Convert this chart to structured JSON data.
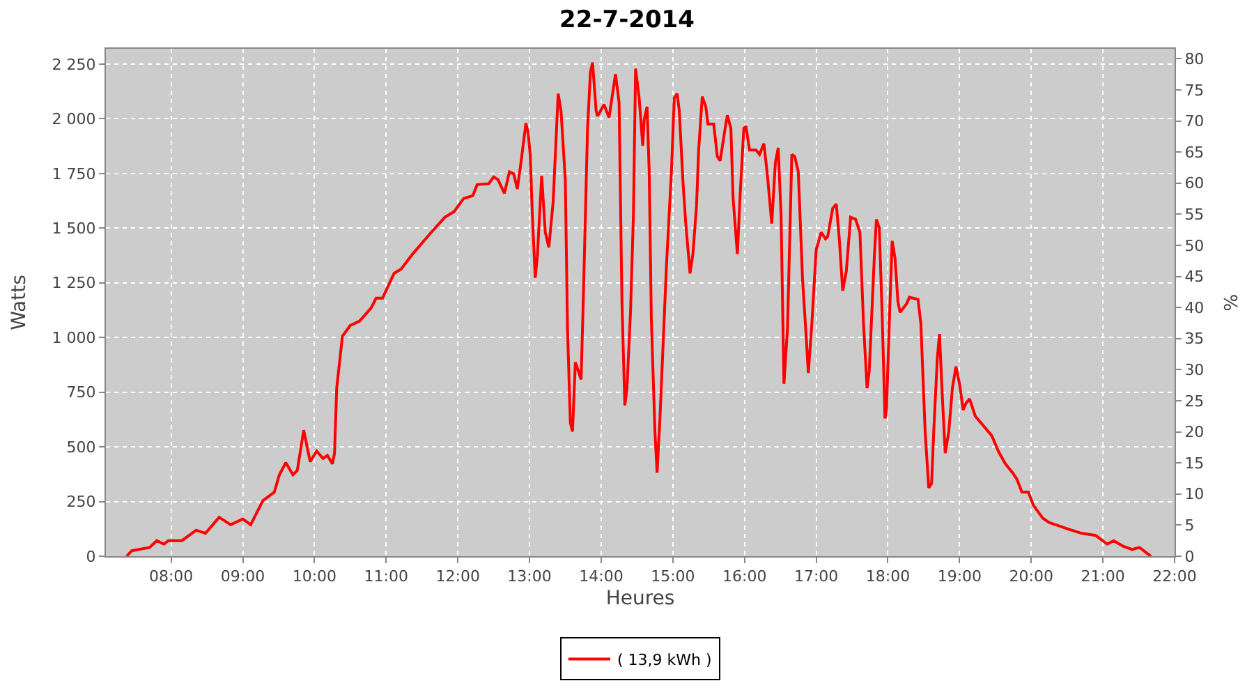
{
  "chart_data": {
    "type": "line",
    "title": "22-7-2014",
    "xlabel": "Heures",
    "ylabel": "Watts",
    "y2label": "%",
    "series": [
      {
        "name": "( 13,9 kWh )",
        "color": "#ff0000",
        "x": [
          7.38,
          7.45,
          7.7,
          7.8,
          7.9,
          7.96,
          8.15,
          8.35,
          8.48,
          8.67,
          8.83,
          9.0,
          9.11,
          9.28,
          9.44,
          9.51,
          9.6,
          9.7,
          9.76,
          9.85,
          9.94,
          10.03,
          10.12,
          10.18,
          10.25,
          10.28,
          10.31,
          10.39,
          10.5,
          10.63,
          10.79,
          10.86,
          10.95,
          11.11,
          11.21,
          11.37,
          11.63,
          11.82,
          11.95,
          12.08,
          12.21,
          12.27,
          12.43,
          12.5,
          12.56,
          12.65,
          12.72,
          12.78,
          12.83,
          12.88,
          12.95,
          12.98,
          13.01,
          13.04,
          13.08,
          13.11,
          13.17,
          13.22,
          13.27,
          13.33,
          13.4,
          13.44,
          13.5,
          13.53,
          13.57,
          13.6,
          13.64,
          13.68,
          13.72,
          13.75,
          13.81,
          13.85,
          13.88,
          13.93,
          13.95,
          14.04,
          14.11,
          14.2,
          14.25,
          14.29,
          14.33,
          14.36,
          14.41,
          14.45,
          14.48,
          14.53,
          14.58,
          14.6,
          14.64,
          14.67,
          14.7,
          14.75,
          14.78,
          14.82,
          14.91,
          14.98,
          15.02,
          15.06,
          15.09,
          15.14,
          15.18,
          15.24,
          15.28,
          15.33,
          15.36,
          15.41,
          15.46,
          15.49,
          15.57,
          15.62,
          15.66,
          15.72,
          15.76,
          15.81,
          15.84,
          15.9,
          15.94,
          15.99,
          16.02,
          16.07,
          16.16,
          16.21,
          16.27,
          16.32,
          16.38,
          16.43,
          16.47,
          16.51,
          16.55,
          16.6,
          16.66,
          16.7,
          16.75,
          16.81,
          16.86,
          16.89,
          16.94,
          17.0,
          17.07,
          17.13,
          17.16,
          17.23,
          17.28,
          17.32,
          17.37,
          17.42,
          17.48,
          17.55,
          17.61,
          17.66,
          17.71,
          17.74,
          17.81,
          17.84,
          17.88,
          17.92,
          17.96,
          17.98,
          18.03,
          18.06,
          18.1,
          18.14,
          18.17,
          18.26,
          18.3,
          18.42,
          18.46,
          18.52,
          18.57,
          18.61,
          18.64,
          18.69,
          18.72,
          18.76,
          18.8,
          18.85,
          18.9,
          18.95,
          19.0,
          19.05,
          19.09,
          19.14,
          19.22,
          19.35,
          19.45,
          19.54,
          19.64,
          19.74,
          19.8,
          19.87,
          19.96,
          20.03,
          20.16,
          20.25,
          20.51,
          20.7,
          20.9,
          21.06,
          21.15,
          21.28,
          21.41,
          21.51,
          21.67
        ],
        "values": [
          0,
          25,
          40,
          71,
          55,
          71,
          71,
          119,
          105,
          178,
          144,
          170,
          144,
          254,
          293,
          372,
          428,
          372,
          392,
          576,
          432,
          481,
          447,
          461,
          422,
          471,
          768,
          1006,
          1055,
          1075,
          1135,
          1180,
          1180,
          1293,
          1313,
          1382,
          1481,
          1550,
          1576,
          1635,
          1649,
          1699,
          1703,
          1734,
          1722,
          1659,
          1758,
          1748,
          1679,
          1798,
          1980,
          1936,
          1837,
          1560,
          1273,
          1372,
          1739,
          1481,
          1412,
          1620,
          2115,
          2036,
          1718,
          1045,
          610,
          570,
          887,
          848,
          808,
          1164,
          1956,
          2214,
          2257,
          2036,
          2012,
          2065,
          2005,
          2204,
          2075,
          1164,
          689,
          768,
          1124,
          1560,
          2229,
          2095,
          1877,
          1996,
          2055,
          1758,
          1085,
          570,
          382,
          630,
          1323,
          1758,
          2095,
          2115,
          2036,
          1718,
          1521,
          1293,
          1382,
          1600,
          1857,
          2101,
          2055,
          1976,
          1976,
          1828,
          1808,
          1936,
          2016,
          1956,
          1639,
          1382,
          1659,
          1956,
          1966,
          1857,
          1857,
          1837,
          1887,
          1739,
          1521,
          1798,
          1867,
          1560,
          788,
          1045,
          1837,
          1828,
          1758,
          1263,
          1006,
          838,
          1065,
          1402,
          1481,
          1451,
          1461,
          1590,
          1610,
          1461,
          1214,
          1303,
          1550,
          1540,
          1481,
          1065,
          768,
          848,
          1362,
          1540,
          1501,
          1105,
          630,
          669,
          1164,
          1442,
          1362,
          1164,
          1115,
          1154,
          1184,
          1174,
          1065,
          570,
          313,
          333,
          570,
          907,
          1016,
          729,
          471,
          570,
          768,
          867,
          788,
          669,
          699,
          719,
          640,
          590,
          551,
          481,
          422,
          382,
          352,
          293,
          293,
          233,
          174,
          154,
          125,
          105,
          95,
          55,
          71,
          46,
          31,
          40,
          0
        ]
      }
    ],
    "xlim": [
      7.09,
      22.0
    ],
    "xticks": [
      {
        "value": 8,
        "label": "08:00"
      },
      {
        "value": 9,
        "label": "09:00"
      },
      {
        "value": 10,
        "label": "10:00"
      },
      {
        "value": 11,
        "label": "11:00"
      },
      {
        "value": 12,
        "label": "12:00"
      },
      {
        "value": 13,
        "label": "13:00"
      },
      {
        "value": 14,
        "label": "14:00"
      },
      {
        "value": 15,
        "label": "15:00"
      },
      {
        "value": 16,
        "label": "16:00"
      },
      {
        "value": 17,
        "label": "17:00"
      },
      {
        "value": 18,
        "label": "18:00"
      },
      {
        "value": 19,
        "label": "19:00"
      },
      {
        "value": 20,
        "label": "20:00"
      },
      {
        "value": 21,
        "label": "21:00"
      },
      {
        "value": 22,
        "label": "22:00"
      }
    ],
    "ylim": [
      0,
      2320
    ],
    "yticks": [
      {
        "value": 0,
        "label": "0"
      },
      {
        "value": 250,
        "label": "250"
      },
      {
        "value": 500,
        "label": "500"
      },
      {
        "value": 750,
        "label": "750"
      },
      {
        "value": 1000,
        "label": "1 000"
      },
      {
        "value": 1250,
        "label": "1 250"
      },
      {
        "value": 1500,
        "label": "1 500"
      },
      {
        "value": 1750,
        "label": "1 750"
      },
      {
        "value": 2000,
        "label": "2 000"
      },
      {
        "value": 2250,
        "label": "2 250"
      }
    ],
    "y2lim": [
      0,
      81.6
    ],
    "y2ticks": [
      0,
      5,
      10,
      15,
      20,
      25,
      30,
      35,
      40,
      45,
      50,
      55,
      60,
      65,
      70,
      75,
      80
    ],
    "grid": true,
    "legend": "bottom",
    "marker": "none",
    "line_style": "solid"
  }
}
